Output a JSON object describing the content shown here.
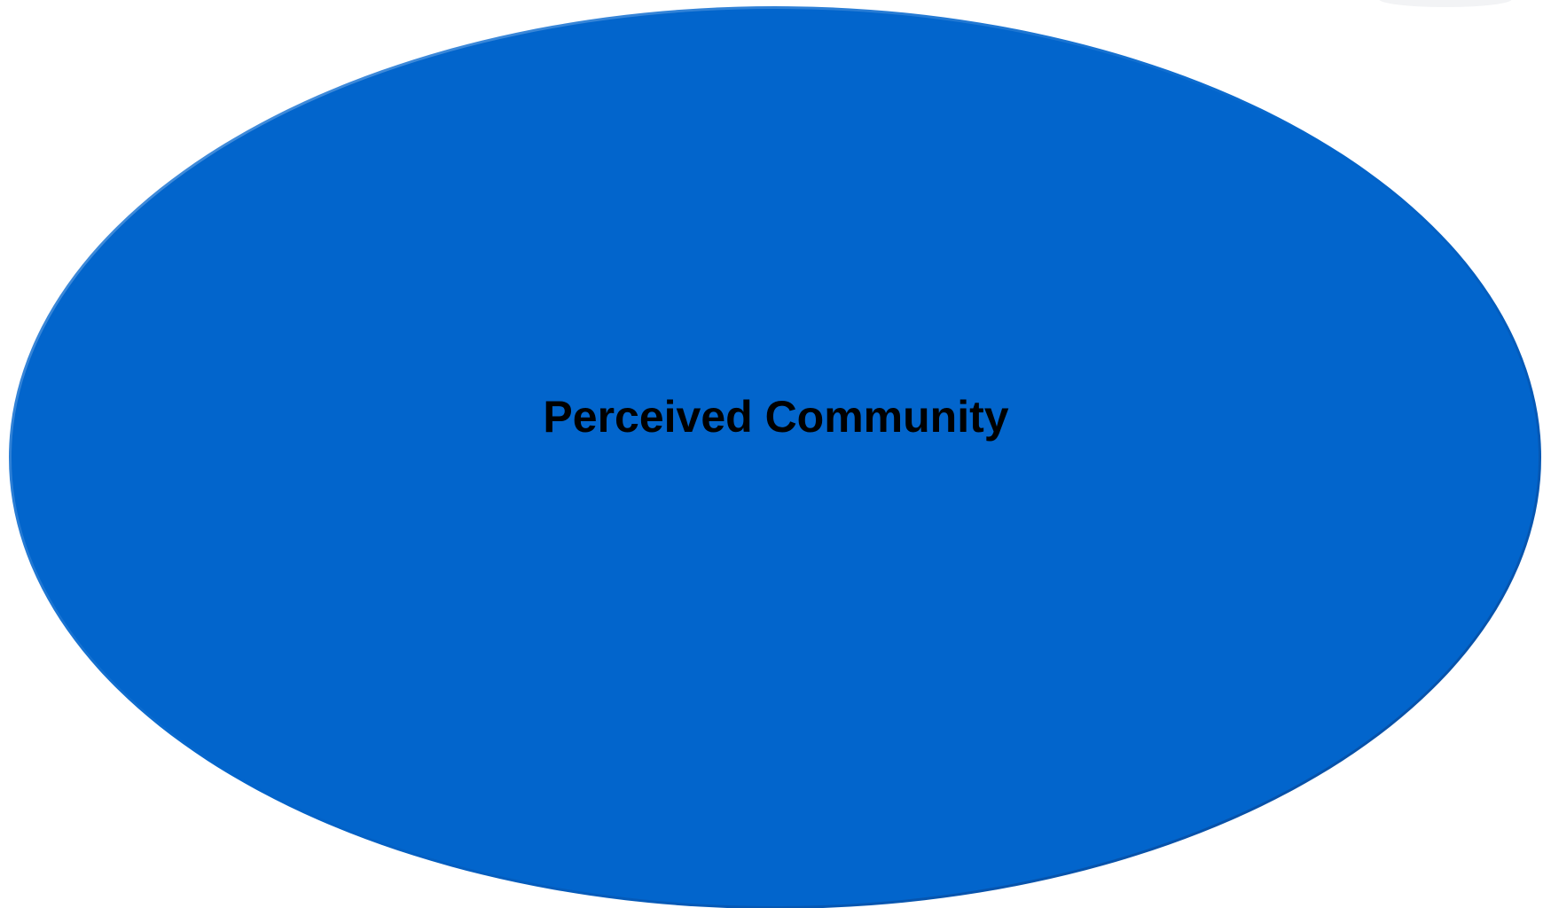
{
  "diagram": {
    "node": {
      "label": "Perceived Community",
      "shape": "ellipse",
      "fill_color": "#0265cc",
      "edge_highlight_color": "#5a9be0",
      "edge_shadow_color": "#0a4a9a"
    }
  }
}
